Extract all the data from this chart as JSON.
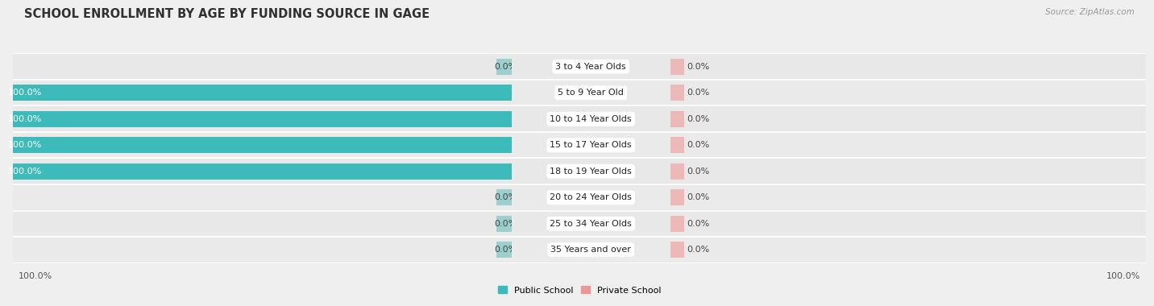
{
  "title": "SCHOOL ENROLLMENT BY AGE BY FUNDING SOURCE IN GAGE",
  "source": "Source: ZipAtlas.com",
  "categories": [
    "3 to 4 Year Olds",
    "5 to 9 Year Old",
    "10 to 14 Year Olds",
    "15 to 17 Year Olds",
    "18 to 19 Year Olds",
    "20 to 24 Year Olds",
    "25 to 34 Year Olds",
    "35 Years and over"
  ],
  "public_values": [
    0.0,
    100.0,
    100.0,
    100.0,
    100.0,
    0.0,
    0.0,
    0.0
  ],
  "private_values": [
    0.0,
    0.0,
    0.0,
    0.0,
    0.0,
    0.0,
    0.0,
    0.0
  ],
  "public_color": "#3DBBBB",
  "public_color_zero": "#9DCFCF",
  "private_color": "#E89898",
  "private_color_zero": "#EDB8B8",
  "bg_color": "#EFEFEF",
  "row_bg_color": "#E5E5E5",
  "row_alt_color": "#EBEBEB",
  "title_fontsize": 10.5,
  "label_fontsize": 8,
  "cat_fontsize": 8,
  "axis_label_fontsize": 8,
  "bar_height": 0.62,
  "max_val": 100,
  "zero_stub": 3,
  "legend_items": [
    "Public School",
    "Private School"
  ]
}
